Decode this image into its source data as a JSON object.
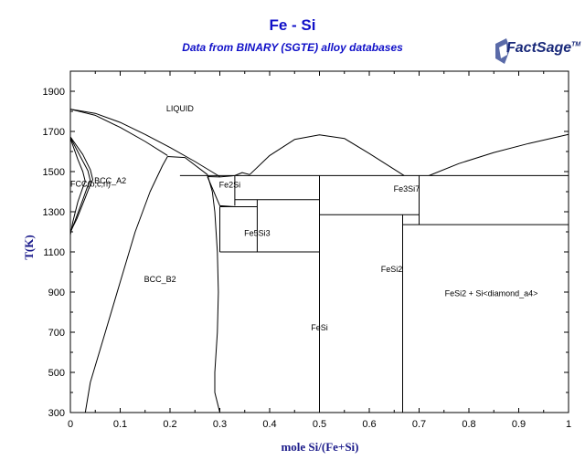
{
  "chart_data": {
    "type": "line",
    "title": "Fe - Si",
    "subtitle": "Data from BINARY (SGTE) alloy databases",
    "xlabel": "mole Si/(Fe+Si)",
    "ylabel": "T(K)",
    "xlim": [
      0,
      1
    ],
    "ylim": [
      300,
      2000
    ],
    "x_ticks": [
      0,
      0.1,
      0.2,
      0.3,
      0.4,
      0.5,
      0.6,
      0.7,
      0.8,
      0.9,
      1
    ],
    "x_tick_labels": [
      "0",
      "0.1",
      "0.2",
      "0.3",
      "0.4",
      "0.5",
      "0.6",
      "0.7",
      "0.8",
      "0.9",
      "1"
    ],
    "y_ticks": [
      300,
      500,
      700,
      900,
      1100,
      1300,
      1500,
      1700,
      1900
    ],
    "y_tick_labels": [
      "300",
      "500",
      "700",
      "900",
      "1100",
      "1300",
      "1500",
      "1700",
      "1900"
    ],
    "region_labels": [
      {
        "text": "LIQUID",
        "x": 0.22,
        "y": 1800
      },
      {
        "text": "BCC_A2",
        "x": 0.08,
        "y": 1440
      },
      {
        "text": "FCC(b,c,n)",
        "x": 0.0,
        "y": 1425
      },
      {
        "text": "Fe2Si",
        "x": 0.32,
        "y": 1420
      },
      {
        "text": "Fe3Si7",
        "x": 0.675,
        "y": 1400
      },
      {
        "text": "Fe5Si3",
        "x": 0.375,
        "y": 1180
      },
      {
        "text": "BCC_B2",
        "x": 0.18,
        "y": 950
      },
      {
        "text": "FeSi2",
        "x": 0.645,
        "y": 1000
      },
      {
        "text": "FeSi2 + Si<diamond_a4>",
        "x": 0.845,
        "y": 880
      },
      {
        "text": "FeSi",
        "x": 0.5,
        "y": 710
      }
    ],
    "series": [
      {
        "values": [
          [
            0,
            1811
          ],
          [
            0.05,
            1790
          ],
          [
            0.1,
            1745
          ],
          [
            0.15,
            1685
          ],
          [
            0.2,
            1620
          ],
          [
            0.25,
            1550
          ],
          [
            0.3,
            1475
          ]
        ]
      },
      {
        "values": [
          [
            0,
            1811
          ],
          [
            0.05,
            1780
          ],
          [
            0.1,
            1720
          ],
          [
            0.15,
            1650
          ],
          [
            0.195,
            1580
          ]
        ]
      },
      {
        "values": [
          [
            0.195,
            1575
          ],
          [
            0.23,
            1570
          ],
          [
            0.275,
            1485
          ]
        ]
      },
      {
        "values": [
          [
            0.195,
            1575
          ],
          [
            0.185,
            1530
          ],
          [
            0.16,
            1400
          ],
          [
            0.13,
            1200
          ],
          [
            0.1,
            950
          ],
          [
            0.07,
            700
          ],
          [
            0.04,
            450
          ],
          [
            0.03,
            300
          ]
        ]
      },
      {
        "values": [
          [
            0.275,
            1485
          ],
          [
            0.285,
            1400
          ],
          [
            0.29,
            1300
          ],
          [
            0.295,
            1100
          ],
          [
            0.297,
            900
          ],
          [
            0.295,
            700
          ],
          [
            0.29,
            500
          ],
          [
            0.29,
            400
          ],
          [
            0.3,
            300
          ]
        ]
      },
      {
        "values": [
          [
            0.275,
            1475
          ],
          [
            0.3,
            1473
          ],
          [
            0.33,
            1480
          ],
          [
            0.345,
            1495
          ],
          [
            0.36,
            1485
          ]
        ]
      },
      {
        "values": [
          [
            0.275,
            1475
          ],
          [
            0.3,
            1330
          ],
          [
            0.33,
            1325
          ]
        ]
      },
      {
        "values": [
          [
            0.36,
            1485
          ],
          [
            0.4,
            1580
          ],
          [
            0.45,
            1660
          ],
          [
            0.5,
            1683
          ],
          [
            0.55,
            1665
          ],
          [
            0.6,
            1590
          ],
          [
            0.67,
            1480
          ]
        ]
      },
      {
        "values": [
          [
            0.72,
            1480
          ],
          [
            0.78,
            1540
          ],
          [
            0.85,
            1595
          ],
          [
            0.92,
            1640
          ],
          [
            1,
            1685
          ]
        ]
      },
      {
        "values": [
          [
            0.22,
            1480
          ],
          [
            1,
            1480
          ]
        ]
      },
      {
        "values": [
          [
            0.33,
            1480
          ],
          [
            0.33,
            1330
          ]
        ]
      },
      {
        "values": [
          [
            0.33,
            1360
          ],
          [
            0.5,
            1360
          ]
        ]
      },
      {
        "values": [
          [
            0.3,
            1325
          ],
          [
            0.375,
            1325
          ]
        ]
      },
      {
        "values": [
          [
            0.3,
            1325
          ],
          [
            0.3,
            1100
          ]
        ]
      },
      {
        "values": [
          [
            0.375,
            1360
          ],
          [
            0.375,
            1100
          ]
        ]
      },
      {
        "values": [
          [
            0.3,
            1100
          ],
          [
            0.5,
            1100
          ]
        ]
      },
      {
        "values": [
          [
            0.5,
            1480
          ],
          [
            0.5,
            300
          ]
        ]
      },
      {
        "values": [
          [
            0.5,
            1285
          ],
          [
            0.7,
            1285
          ]
        ]
      },
      {
        "values": [
          [
            0.667,
            1285
          ],
          [
            0.667,
            300
          ]
        ]
      },
      {
        "values": [
          [
            0.7,
            1480
          ],
          [
            0.7,
            1236
          ]
        ]
      },
      {
        "values": [
          [
            0.667,
            1236
          ],
          [
            1,
            1236
          ]
        ]
      },
      {
        "values": [
          [
            0,
            1185
          ],
          [
            0.005,
            1250
          ],
          [
            0.015,
            1350
          ],
          [
            0.025,
            1420
          ],
          [
            0.03,
            1450
          ],
          [
            0.025,
            1500
          ],
          [
            0.015,
            1560
          ],
          [
            0,
            1665
          ]
        ]
      },
      {
        "values": [
          [
            0,
            1195
          ],
          [
            0.01,
            1260
          ],
          [
            0.025,
            1360
          ],
          [
            0.035,
            1430
          ],
          [
            0.04,
            1455
          ],
          [
            0.035,
            1505
          ],
          [
            0.02,
            1575
          ],
          [
            0,
            1670
          ]
        ]
      },
      {
        "values": [
          [
            0,
            1200
          ],
          [
            0.013,
            1265
          ],
          [
            0.03,
            1370
          ],
          [
            0.04,
            1435
          ],
          [
            0.045,
            1460
          ],
          [
            0.04,
            1510
          ],
          [
            0.025,
            1585
          ],
          [
            0,
            1673
          ]
        ]
      }
    ]
  }
}
